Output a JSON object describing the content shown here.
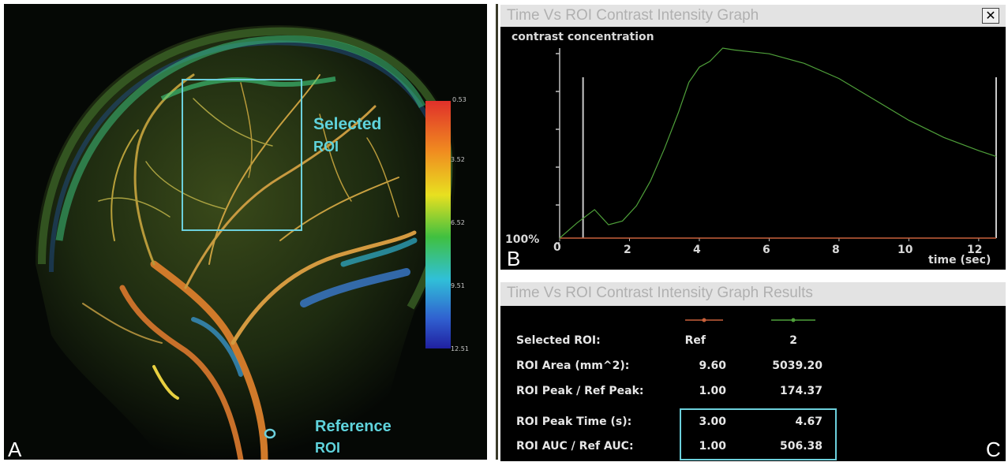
{
  "panel_a": {
    "letter": "A",
    "selected_roi_label": [
      "Selected",
      "ROI"
    ],
    "reference_roi_label": [
      "Reference",
      "ROI"
    ],
    "colorbar_ticks": [
      "0.53",
      "3.52",
      "6.52",
      "9.51",
      "12.51"
    ],
    "colors": {
      "roi_box": "#6cd0dc",
      "label": "#5fd3dc"
    }
  },
  "panel_b": {
    "letter": "B",
    "window_title": "Time Vs ROI Contrast Intensity Graph",
    "close_label": "✕",
    "chart_data": {
      "type": "line",
      "ylabel": "contrast concentration",
      "xlabel": "time (sec)",
      "y_tick_label": "100%",
      "x_ticks": [
        "0",
        "2",
        "4",
        "6",
        "8",
        "10",
        "12"
      ],
      "xlim": [
        0,
        12.5
      ],
      "series": [
        {
          "name": "Ref",
          "color": "#c8603a",
          "x": [
            0,
            12.5
          ],
          "y": [
            0,
            0
          ]
        },
        {
          "name": "2",
          "color": "#4fa03a",
          "x": [
            0,
            0.5,
            1,
            1.4,
            1.8,
            2.2,
            2.6,
            3,
            3.4,
            3.7,
            4,
            4.3,
            4.67,
            5,
            5.5,
            6,
            7,
            8,
            9,
            10,
            11,
            12,
            12.5
          ],
          "y": [
            0,
            0.08,
            0.15,
            0.07,
            0.09,
            0.17,
            0.3,
            0.47,
            0.66,
            0.82,
            0.9,
            0.93,
            1.0,
            0.99,
            0.98,
            0.97,
            0.92,
            0.84,
            0.73,
            0.62,
            0.53,
            0.46,
            0.43
          ]
        }
      ],
      "markers_x": [
        0.67,
        12.5
      ]
    }
  },
  "panel_c": {
    "letter": "C",
    "window_title": "Time Vs ROI Contrast Intensity Graph Results",
    "legend_colors": [
      "#c8603a",
      "#4fa03a"
    ],
    "rows": [
      {
        "label": "Selected ROI:",
        "ref": "Ref",
        "sel": "2"
      },
      {
        "label": "ROI Area (mm^2):",
        "ref": "9.60",
        "sel": "5039.20"
      },
      {
        "label": "ROI Peak / Ref Peak:",
        "ref": "1.00",
        "sel": "174.37"
      },
      {
        "label": "ROI Peak Time (s):",
        "ref": "3.00",
        "sel": "4.67"
      },
      {
        "label": "ROI AUC / Ref AUC:",
        "ref": "1.00",
        "sel": "506.38"
      }
    ],
    "highlight_color": "#6cd0dc"
  }
}
